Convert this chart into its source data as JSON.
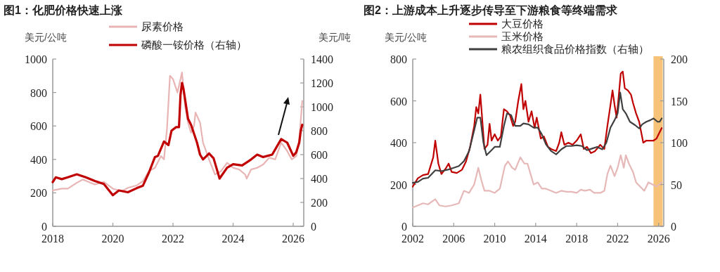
{
  "chart_data": [
    {
      "type": "line",
      "title": "图1：化肥价格快速上涨",
      "ylabel": "美元/公吨",
      "y2label": "美元/吨",
      "legend": "top",
      "xlim": [
        2018,
        2026.35
      ],
      "xticks": [
        2018,
        2020,
        2022,
        2024,
        2026
      ],
      "ylim": [
        0,
        1000
      ],
      "yticks": [
        0,
        200,
        400,
        600,
        800,
        1000
      ],
      "y2lim": [
        0,
        1400
      ],
      "y2ticks": [
        0,
        200,
        400,
        600,
        800,
        1000,
        1200,
        1400
      ],
      "series": [
        {
          "name": "尿素价格",
          "color": "#e8b4b4",
          "x": [
            2018,
            2018.3,
            2018.5,
            2018.8,
            2019.0,
            2019.2,
            2019.4,
            2019.7,
            2020.0,
            2020.3,
            2020.5,
            2020.8,
            2021.0,
            2021.2,
            2021.4,
            2021.6,
            2021.7,
            2021.8,
            2021.9,
            2022.0,
            2022.15,
            2022.25,
            2022.3,
            2022.4,
            2022.5,
            2022.6,
            2022.7,
            2022.75,
            2022.9,
            2023.0,
            2023.2,
            2023.4,
            2023.6,
            2023.8,
            2024.0,
            2024.2,
            2024.4,
            2024.45,
            2024.6,
            2024.8,
            2025.0,
            2025.2,
            2025.4,
            2025.6,
            2025.8,
            2025.95,
            2026.1,
            2026.2,
            2026.3
          ],
          "values": [
            215,
            225,
            225,
            260,
            280,
            265,
            250,
            265,
            225,
            210,
            230,
            245,
            270,
            330,
            350,
            420,
            400,
            580,
            900,
            880,
            800,
            880,
            920,
            720,
            620,
            560,
            600,
            680,
            620,
            500,
            400,
            310,
            330,
            380,
            350,
            340,
            310,
            285,
            340,
            350,
            370,
            410,
            400,
            500,
            450,
            400,
            420,
            520,
            750
          ]
        },
        {
          "name": "磷酸一铵价格（右轴）",
          "color": "#c00000",
          "axis": "y2",
          "x": [
            2018,
            2018.1,
            2018.3,
            2018.5,
            2018.8,
            2019.1,
            2019.4,
            2019.7,
            2020.0,
            2020.2,
            2020.5,
            2020.8,
            2021.0,
            2021.2,
            2021.4,
            2021.5,
            2021.7,
            2021.85,
            2021.95,
            2022.1,
            2022.2,
            2022.25,
            2022.3,
            2022.35,
            2022.5,
            2022.6,
            2022.8,
            2022.9,
            2023.0,
            2023.2,
            2023.35,
            2023.55,
            2023.8,
            2024.0,
            2024.3,
            2024.6,
            2024.8,
            2025.0,
            2025.3,
            2025.6,
            2025.8,
            2026.0,
            2026.1,
            2026.2,
            2026.25,
            2026.3
          ],
          "values": [
            370,
            410,
            395,
            410,
            435,
            410,
            380,
            355,
            260,
            300,
            285,
            320,
            340,
            450,
            580,
            590,
            710,
            680,
            800,
            830,
            830,
            1100,
            1200,
            1150,
            900,
            850,
            700,
            600,
            560,
            610,
            570,
            400,
            490,
            520,
            510,
            560,
            600,
            580,
            600,
            730,
            700,
            590,
            620,
            700,
            800,
            850
          ]
        }
      ]
    },
    {
      "type": "line",
      "title": "图2：上游成本上升逐步传导至下游粮食等终端需求",
      "ylabel": "美元/公吨",
      "legend": "top",
      "xlim": [
        2002,
        2026.5
      ],
      "xticks": [
        2002,
        2006,
        2010,
        2014,
        2018,
        2022,
        2026
      ],
      "ylim": [
        0,
        800
      ],
      "yticks": [
        0,
        200,
        400,
        600,
        800
      ],
      "y2lim": [
        0,
        200
      ],
      "y2ticks": [
        0,
        50,
        100,
        150,
        200
      ],
      "bands": [
        {
          "axis": "x",
          "from": 2025.5,
          "to": 2026.4,
          "color": "#f5b860"
        }
      ],
      "series": [
        {
          "name": "大豆价格",
          "color": "#c00000",
          "x": [
            2002,
            2002.5,
            2003,
            2003.5,
            2004.0,
            2004.2,
            2004.5,
            2004.8,
            2005.2,
            2005.5,
            2005.8,
            2006.3,
            2006.8,
            2007.2,
            2007.6,
            2008.0,
            2008.2,
            2008.4,
            2008.6,
            2008.8,
            2009.0,
            2009.3,
            2009.5,
            2009.7,
            2010.0,
            2010.3,
            2010.6,
            2010.9,
            2011.2,
            2011.5,
            2011.8,
            2012.0,
            2012.3,
            2012.6,
            2012.8,
            2013.0,
            2013.3,
            2013.6,
            2013.9,
            2014.1,
            2014.5,
            2014.8,
            2015.2,
            2015.5,
            2016.0,
            2016.3,
            2016.5,
            2016.8,
            2017.2,
            2017.6,
            2018.0,
            2018.4,
            2018.7,
            2019.0,
            2019.4,
            2019.8,
            2020.3,
            2020.7,
            2021.0,
            2021.3,
            2021.5,
            2021.7,
            2021.9,
            2022.1,
            2022.3,
            2022.5,
            2022.7,
            2023.0,
            2023.3,
            2023.5,
            2023.8,
            2024.1,
            2024.3,
            2024.5,
            2024.8,
            2025.2,
            2025.5,
            2025.8,
            2026.0,
            2026.3
          ],
          "values": [
            190,
            230,
            245,
            250,
            330,
            410,
            300,
            250,
            275,
            300,
            260,
            255,
            270,
            310,
            380,
            480,
            570,
            540,
            630,
            500,
            370,
            390,
            490,
            410,
            440,
            410,
            430,
            560,
            550,
            530,
            480,
            500,
            600,
            680,
            560,
            600,
            500,
            550,
            470,
            520,
            420,
            430,
            380,
            370,
            360,
            400,
            450,
            390,
            400,
            390,
            410,
            440,
            370,
            380,
            350,
            360,
            390,
            370,
            480,
            580,
            650,
            580,
            520,
            620,
            730,
            740,
            660,
            650,
            630,
            590,
            540,
            500,
            450,
            400,
            410,
            410,
            410,
            420,
            440,
            470
          ]
        },
        {
          "name": "玉米价格",
          "color": "#e6b8b8",
          "x": [
            2002,
            2002.5,
            2003,
            2003.5,
            2004.2,
            2004.6,
            2005.2,
            2005.8,
            2006.5,
            2007.0,
            2007.5,
            2008.0,
            2008.4,
            2008.7,
            2009.0,
            2009.5,
            2010.0,
            2010.5,
            2011.0,
            2011.3,
            2011.7,
            2012.0,
            2012.5,
            2012.9,
            2013.2,
            2013.5,
            2013.8,
            2014.2,
            2014.6,
            2015.0,
            2015.5,
            2016.0,
            2016.5,
            2017.0,
            2017.5,
            2018.0,
            2018.4,
            2018.8,
            2019.3,
            2019.7,
            2020.3,
            2020.7,
            2021.0,
            2021.3,
            2021.7,
            2022.0,
            2022.3,
            2022.6,
            2022.8,
            2023.1,
            2023.5,
            2023.8,
            2024.2,
            2024.6,
            2025.0,
            2025.4,
            2025.8,
            2026.3
          ],
          "values": [
            90,
            100,
            110,
            105,
            130,
            100,
            95,
            100,
            110,
            170,
            160,
            200,
            280,
            220,
            170,
            170,
            160,
            180,
            290,
            310,
            280,
            270,
            330,
            300,
            300,
            250,
            200,
            210,
            180,
            180,
            170,
            160,
            170,
            165,
            165,
            160,
            175,
            170,
            175,
            160,
            160,
            170,
            250,
            290,
            240,
            280,
            340,
            280,
            340,
            300,
            260,
            210,
            190,
            170,
            210,
            200,
            190,
            210
          ]
        },
        {
          "name": "粮农组织食品价格指数（右轴）",
          "color": "#404040",
          "axis": "y2",
          "x": [
            2002,
            2002.5,
            2003,
            2003.5,
            2004.2,
            2004.8,
            2005.5,
            2006.0,
            2006.5,
            2007.0,
            2007.5,
            2008.0,
            2008.3,
            2008.6,
            2008.9,
            2009.2,
            2009.6,
            2010.0,
            2010.5,
            2010.9,
            2011.2,
            2011.6,
            2012.0,
            2012.5,
            2012.8,
            2013.3,
            2013.8,
            2014.2,
            2014.6,
            2015.0,
            2015.5,
            2016.0,
            2016.5,
            2017.0,
            2017.5,
            2018.0,
            2018.5,
            2019.0,
            2019.5,
            2020.0,
            2020.5,
            2020.9,
            2021.3,
            2021.7,
            2022.0,
            2022.25,
            2022.5,
            2022.8,
            2023.2,
            2023.7,
            2024.1,
            2024.4,
            2024.8,
            2025.2,
            2025.5,
            2025.9,
            2026.1,
            2026.3
          ],
          "values": [
            52,
            53,
            57,
            58,
            67,
            66,
            68,
            70,
            72,
            78,
            90,
            115,
            130,
            130,
            100,
            85,
            90,
            95,
            95,
            120,
            135,
            133,
            120,
            120,
            123,
            122,
            118,
            118,
            110,
            98,
            90,
            86,
            92,
            96,
            96,
            97,
            96,
            91,
            93,
            95,
            92,
            100,
            118,
            127,
            135,
            160,
            140,
            135,
            125,
            121,
            117,
            122,
            125,
            127,
            129,
            125,
            125,
            129
          ]
        }
      ]
    }
  ]
}
